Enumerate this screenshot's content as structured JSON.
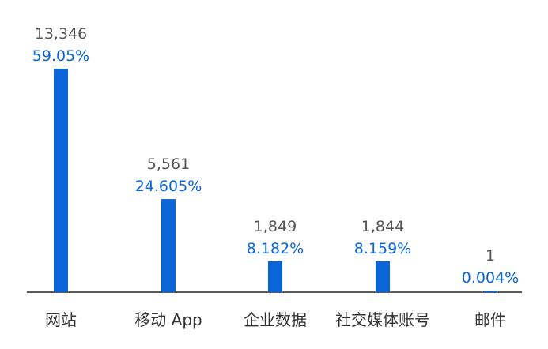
{
  "chart_data": {
    "type": "bar",
    "categories": [
      "网站",
      "移动 App",
      "企业数据",
      "社交媒体账号",
      "邮件"
    ],
    "values": [
      13346,
      5561,
      1849,
      1844,
      1
    ],
    "value_labels": [
      "13,346",
      "5,561",
      "1,849",
      "1,844",
      "1"
    ],
    "percent_labels": [
      "59.05%",
      "24.605%",
      "8.182%",
      "8.159%",
      "0.004%"
    ],
    "title": "",
    "xlabel": "",
    "ylabel": "",
    "ylim": [
      0,
      13346
    ],
    "grid": false,
    "legend": "none"
  },
  "colors": {
    "bar": "#0a66d8",
    "percent_text": "#0a66d8",
    "count_text": "#555555",
    "category_text": "#333333",
    "axis": "#222222",
    "background": "#ffffff"
  }
}
